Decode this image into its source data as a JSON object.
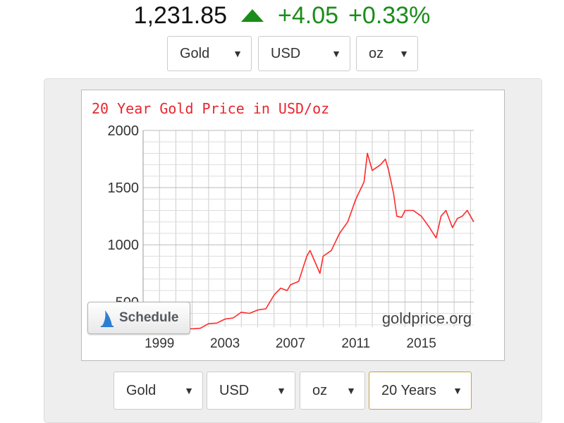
{
  "quote": {
    "price": "1,231.85",
    "change": "+4.05",
    "change_pct": "+0.33%",
    "direction": "up"
  },
  "top_selectors": {
    "metal": "Gold",
    "currency": "USD",
    "unit": "oz"
  },
  "bottom_selectors": {
    "metal": "Gold",
    "currency": "USD",
    "unit": "oz",
    "range": "20 Years"
  },
  "chart": {
    "schedule_label": "Schedule",
    "watermark": "goldprice.org"
  },
  "colors": {
    "line": "#ff2a2a",
    "title": "#e8262e",
    "up": "#1a8c1a",
    "grid": "#cccccc"
  },
  "icons": {
    "caret": "triangle-down-icon",
    "trend": "triangle-up-icon",
    "schedule": "sail-logo-icon"
  },
  "chart_data": {
    "type": "line",
    "title": "20 Year Gold Price in USD/oz",
    "xlabel": "",
    "ylabel": "",
    "xlim": [
      1998.0,
      2018.2
    ],
    "ylim": [
      280,
      2000
    ],
    "yticks": [
      500,
      1000,
      1500,
      2000
    ],
    "xticks": [
      1999,
      2003,
      2007,
      2011,
      2015
    ],
    "grid": true,
    "series": [
      {
        "x": [
          1998.0,
          1998.5,
          1999.0,
          1999.5,
          1999.8,
          2000.0,
          2000.5,
          2001.0,
          2001.5,
          2002.0,
          2002.5,
          2003.0,
          2003.5,
          2004.0,
          2004.5,
          2005.0,
          2005.5,
          2006.0,
          2006.4,
          2006.8,
          2007.0,
          2007.5,
          2008.0,
          2008.2,
          2008.5,
          2008.8,
          2009.0,
          2009.5,
          2010.0,
          2010.5,
          2011.0,
          2011.5,
          2011.7,
          2012.0,
          2012.5,
          2012.8,
          2013.0,
          2013.3,
          2013.5,
          2013.8,
          2014.0,
          2014.5,
          2015.0,
          2015.5,
          2015.9,
          2016.2,
          2016.5,
          2016.9,
          2017.2,
          2017.5,
          2017.8,
          2018.2
        ],
        "y": [
          295,
          285,
          285,
          260,
          300,
          285,
          270,
          265,
          270,
          310,
          315,
          350,
          360,
          410,
          400,
          430,
          440,
          560,
          620,
          600,
          650,
          680,
          900,
          950,
          850,
          750,
          900,
          950,
          1100,
          1200,
          1400,
          1550,
          1800,
          1650,
          1700,
          1750,
          1650,
          1450,
          1250,
          1240,
          1300,
          1300,
          1250,
          1150,
          1060,
          1250,
          1300,
          1150,
          1230,
          1250,
          1300,
          1200
        ]
      }
    ]
  }
}
